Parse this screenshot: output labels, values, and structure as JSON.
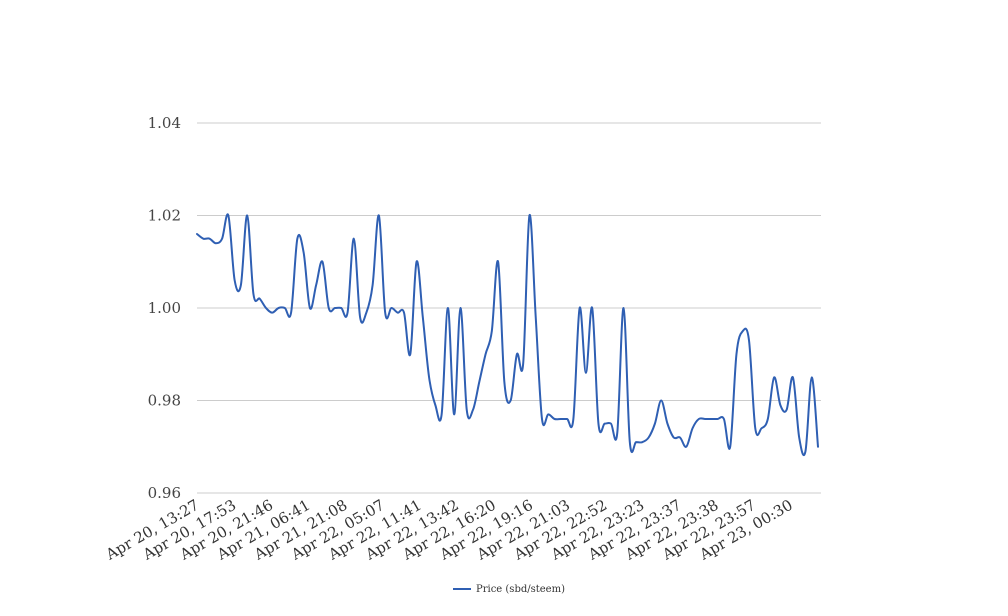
{
  "chart_data": {
    "type": "line",
    "title": "",
    "xlabel": "",
    "ylabel": "",
    "ylim": [
      0.96,
      1.04
    ],
    "yticks": [
      "0.96",
      "0.98",
      "1.00",
      "1.02",
      "1.04"
    ],
    "ytick_values": [
      0.96,
      0.98,
      1.0,
      1.02,
      1.04
    ],
    "grid": true,
    "legend": "bottom-center",
    "x_tick_labels": [
      "Apr 20, 13:27",
      "Apr 20, 17:53",
      "Apr 20, 21:46",
      "Apr 21, 06:41",
      "Apr 21, 21:08",
      "Apr 22, 05:07",
      "Apr 22, 11:41",
      "Apr 22, 13:42",
      "Apr 22, 16:20",
      "Apr 22, 19:16",
      "Apr 22, 21:03",
      "Apr 22, 22:52",
      "Apr 22, 23:23",
      "Apr 22, 23:37",
      "Apr 22, 23:38",
      "Apr 22, 23:57",
      "Apr 23, 00:30"
    ],
    "series": [
      {
        "name": "Price (sbd/steem)",
        "color": "#2f5fb3",
        "values": [
          1.016,
          1.015,
          1.015,
          1.014,
          1.015,
          1.02,
          1.006,
          1.005,
          1.02,
          1.003,
          1.002,
          1.0,
          0.999,
          1.0,
          1.0,
          0.999,
          1.015,
          1.012,
          1.0,
          1.005,
          1.01,
          1.0,
          1.0,
          1.0,
          0.999,
          1.015,
          0.998,
          0.999,
          1.005,
          1.02,
          0.999,
          1.0,
          0.999,
          0.999,
          0.99,
          1.01,
          0.998,
          0.985,
          0.979,
          0.977,
          1.0,
          0.977,
          1.0,
          0.978,
          0.978,
          0.984,
          0.99,
          0.995,
          1.01,
          0.984,
          0.98,
          0.99,
          0.988,
          1.02,
          0.998,
          0.976,
          0.977,
          0.976,
          0.976,
          0.976,
          0.976,
          1.0,
          0.986,
          1.0,
          0.975,
          0.975,
          0.975,
          0.973,
          1.0,
          0.971,
          0.971,
          0.971,
          0.972,
          0.975,
          0.98,
          0.975,
          0.972,
          0.972,
          0.97,
          0.974,
          0.976,
          0.976,
          0.976,
          0.976,
          0.976,
          0.97,
          0.99,
          0.995,
          0.993,
          0.974,
          0.974,
          0.976,
          0.985,
          0.979,
          0.978,
          0.985,
          0.972,
          0.969,
          0.985,
          0.97
        ]
      }
    ]
  }
}
